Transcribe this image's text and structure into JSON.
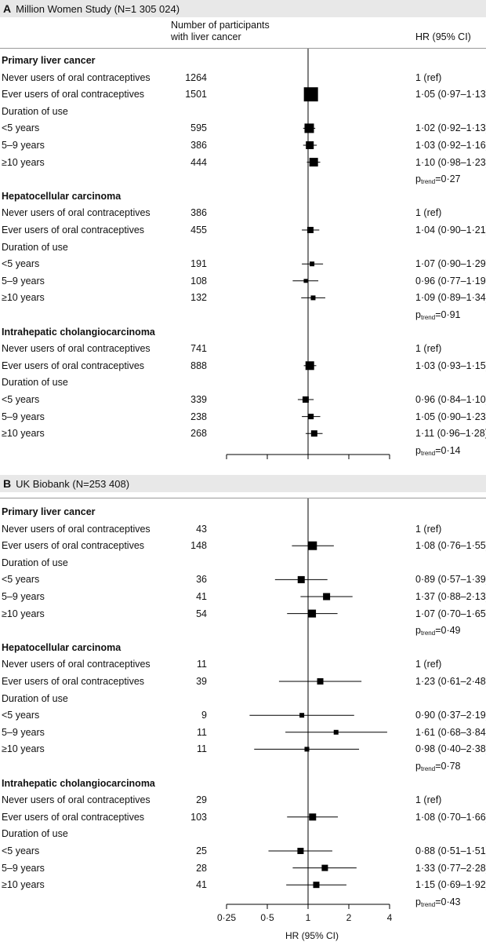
{
  "chart_data": [
    {
      "type": "forest",
      "panel_letter": "A",
      "title": "Million Women Study (N=1 305 024)",
      "col_n_header": "Number of participants with liver cancer",
      "col_n_header_lines": [
        "Number of participants",
        "with liver cancer"
      ],
      "col_hr_header": "HR (95% CI)",
      "x_scale": "log",
      "x_ticks": [
        0.25,
        0.5,
        1,
        2,
        4
      ],
      "xlim": [
        0.25,
        4
      ],
      "rows": [
        {
          "kind": "section",
          "label": "Primary liver cancer"
        },
        {
          "kind": "data",
          "label": "Never users of oral contraceptives",
          "n": "1264",
          "hr_text": "1 (ref)"
        },
        {
          "kind": "data",
          "label": "Ever users of oral contraceptives",
          "n": "1501",
          "hr": 1.05,
          "lo": 0.97,
          "hi": 1.13,
          "hr_text": "1·05 (0·97–1·13)",
          "box": 18
        },
        {
          "kind": "label",
          "label": "Duration of use"
        },
        {
          "kind": "data",
          "label": "<5 years",
          "n": "595",
          "hr": 1.02,
          "lo": 0.92,
          "hi": 1.13,
          "hr_text": "1·02 (0·92–1·13)",
          "box": 12
        },
        {
          "kind": "data",
          "label": "5–9 years",
          "n": "386",
          "hr": 1.03,
          "lo": 0.92,
          "hi": 1.16,
          "hr_text": "1·03 (0·92–1·16)",
          "box": 10
        },
        {
          "kind": "data",
          "label": "≥10 years",
          "n": "444",
          "hr": 1.1,
          "lo": 0.98,
          "hi": 1.23,
          "hr_text": "1·10 (0·98–1·23)",
          "box": 11
        },
        {
          "kind": "trend",
          "p_label": "p",
          "p_sub": "trend",
          "p_value": "=0·27"
        },
        {
          "kind": "section",
          "label": "Hepatocellular carcinoma"
        },
        {
          "kind": "data",
          "label": "Never users of oral contraceptives",
          "n": "386",
          "hr_text": "1 (ref)"
        },
        {
          "kind": "data",
          "label": "Ever users of oral contraceptives",
          "n": "455",
          "hr": 1.04,
          "lo": 0.9,
          "hi": 1.21,
          "hr_text": "1·04 (0·90–1·21)",
          "box": 8
        },
        {
          "kind": "label",
          "label": "Duration of use"
        },
        {
          "kind": "data",
          "label": "<5 years",
          "n": "191",
          "hr": 1.07,
          "lo": 0.9,
          "hi": 1.29,
          "hr_text": "1·07 (0·90–1·29)",
          "box": 6
        },
        {
          "kind": "data",
          "label": "5–9 years",
          "n": "108",
          "hr": 0.96,
          "lo": 0.77,
          "hi": 1.19,
          "hr_text": "0·96 (0·77–1·19)",
          "box": 5
        },
        {
          "kind": "data",
          "label": "≥10 years",
          "n": "132",
          "hr": 1.09,
          "lo": 0.89,
          "hi": 1.34,
          "hr_text": "1·09 (0·89–1·34)",
          "box": 6
        },
        {
          "kind": "trend",
          "p_label": "p",
          "p_sub": "trend",
          "p_value": "=0·91"
        },
        {
          "kind": "section",
          "label": "Intrahepatic cholangiocarcinoma"
        },
        {
          "kind": "data",
          "label": "Never users of oral contraceptives",
          "n": "741",
          "hr_text": "1 (ref)"
        },
        {
          "kind": "data",
          "label": "Ever users of oral contraceptives",
          "n": "888",
          "hr": 1.03,
          "lo": 0.93,
          "hi": 1.15,
          "hr_text": "1·03 (0·93–1·15)",
          "box": 11
        },
        {
          "kind": "label",
          "label": "Duration of use"
        },
        {
          "kind": "data",
          "label": "<5 years",
          "n": "339",
          "hr": 0.96,
          "lo": 0.84,
          "hi": 1.1,
          "hr_text": "0·96 (0·84–1·10)",
          "box": 8
        },
        {
          "kind": "data",
          "label": "5–9 years",
          "n": "238",
          "hr": 1.05,
          "lo": 0.9,
          "hi": 1.23,
          "hr_text": "1·05 (0·90–1·23)",
          "box": 7
        },
        {
          "kind": "data",
          "label": "≥10 years",
          "n": "268",
          "hr": 1.11,
          "lo": 0.96,
          "hi": 1.28,
          "hr_text": "1·11 (0·96–1·28)",
          "box": 8
        },
        {
          "kind": "trend",
          "p_label": "p",
          "p_sub": "trend",
          "p_value": "=0·14"
        }
      ]
    },
    {
      "type": "forest",
      "panel_letter": "B",
      "title": "UK Biobank (N=253 408)",
      "x_scale": "log",
      "x_ticks": [
        0.25,
        0.5,
        1,
        2,
        4
      ],
      "x_tick_labels": [
        "0·25",
        "0·5",
        "1",
        "2",
        "4"
      ],
      "xlim": [
        0.25,
        4
      ],
      "xlabel": "HR (95% CI)",
      "rows": [
        {
          "kind": "section",
          "label": "Primary liver cancer"
        },
        {
          "kind": "data",
          "label": "Never users of oral contraceptives",
          "n": "43",
          "hr_text": "1 (ref)"
        },
        {
          "kind": "data",
          "label": "Ever users of oral contraceptives",
          "n": "148",
          "hr": 1.08,
          "lo": 0.76,
          "hi": 1.55,
          "hr_text": "1·08 (0·76–1·55)",
          "box": 11
        },
        {
          "kind": "label",
          "label": "Duration of use"
        },
        {
          "kind": "data",
          "label": "<5 years",
          "n": "36",
          "hr": 0.89,
          "lo": 0.57,
          "hi": 1.39,
          "hr_text": "0·89 (0·57–1·39)",
          "box": 9
        },
        {
          "kind": "data",
          "label": "5–9 years",
          "n": "41",
          "hr": 1.37,
          "lo": 0.88,
          "hi": 2.13,
          "hr_text": "1·37 (0·88–2·13)",
          "box": 9
        },
        {
          "kind": "data",
          "label": "≥10 years",
          "n": "54",
          "hr": 1.07,
          "lo": 0.7,
          "hi": 1.65,
          "hr_text": "1·07 (0·70–1·65)",
          "box": 10
        },
        {
          "kind": "trend",
          "p_label": "p",
          "p_sub": "trend",
          "p_value": "=0·49"
        },
        {
          "kind": "section",
          "label": "Hepatocellular carcinoma"
        },
        {
          "kind": "data",
          "label": "Never users of oral contraceptives",
          "n": "11",
          "hr_text": "1 (ref)"
        },
        {
          "kind": "data",
          "label": "Ever users of oral contraceptives",
          "n": "39",
          "hr": 1.23,
          "lo": 0.61,
          "hi": 2.48,
          "hr_text": "1·23 (0·61–2·48)",
          "box": 8
        },
        {
          "kind": "label",
          "label": "Duration of use"
        },
        {
          "kind": "data",
          "label": "<5 years",
          "n": "9",
          "hr": 0.9,
          "lo": 0.37,
          "hi": 2.19,
          "hr_text": "0·90 (0·37–2·19)",
          "box": 6
        },
        {
          "kind": "data",
          "label": "5–9 years",
          "n": "11",
          "hr": 1.61,
          "lo": 0.68,
          "hi": 3.84,
          "hr_text": "1·61 (0·68–3·84)",
          "box": 6
        },
        {
          "kind": "data",
          "label": "≥10 years",
          "n": "11",
          "hr": 0.98,
          "lo": 0.4,
          "hi": 2.38,
          "hr_text": "0·98 (0·40–2·38)",
          "box": 6
        },
        {
          "kind": "trend",
          "p_label": "p",
          "p_sub": "trend",
          "p_value": "=0·78"
        },
        {
          "kind": "section",
          "label": "Intrahepatic cholangiocarcinoma"
        },
        {
          "kind": "data",
          "label": "Never users of oral contraceptives",
          "n": "29",
          "hr_text": "1 (ref)"
        },
        {
          "kind": "data",
          "label": "Ever users of oral contraceptives",
          "n": "103",
          "hr": 1.08,
          "lo": 0.7,
          "hi": 1.66,
          "hr_text": "1·08 (0·70–1·66)",
          "box": 9
        },
        {
          "kind": "label",
          "label": "Duration of use"
        },
        {
          "kind": "data",
          "label": "<5 years",
          "n": "25",
          "hr": 0.88,
          "lo": 0.51,
          "hi": 1.51,
          "hr_text": "0·88 (0·51–1·51)",
          "box": 8
        },
        {
          "kind": "data",
          "label": "5–9 years",
          "n": "28",
          "hr": 1.33,
          "lo": 0.77,
          "hi": 2.28,
          "hr_text": "1·33 (0·77–2·28)",
          "box": 8
        },
        {
          "kind": "data",
          "label": "≥10 years",
          "n": "41",
          "hr": 1.15,
          "lo": 0.69,
          "hi": 1.92,
          "hr_text": "1·15 (0·69–1·92)",
          "box": 8
        },
        {
          "kind": "trend",
          "p_label": "p",
          "p_sub": "trend",
          "p_value": "=0·43"
        }
      ]
    }
  ]
}
